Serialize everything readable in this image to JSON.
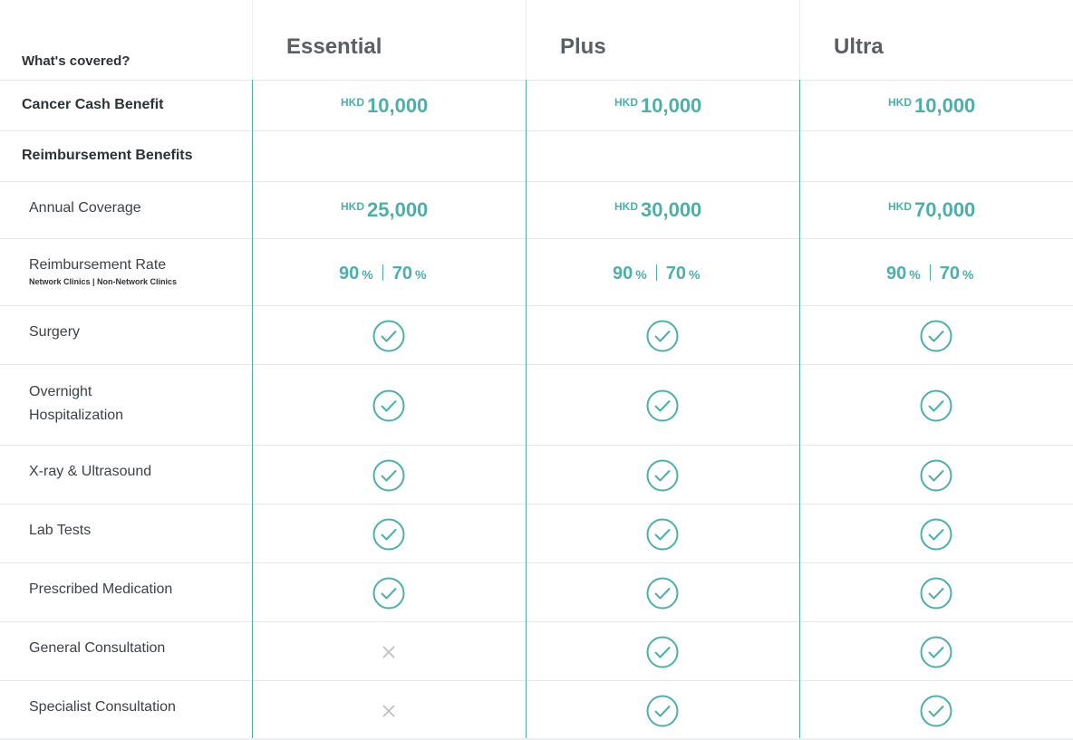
{
  "header": {
    "corner_label": "What's covered?",
    "plans": [
      "Essential",
      "Plus",
      "Ultra"
    ]
  },
  "rows": {
    "cancer_cash": {
      "label": "Cancer Cash Benefit",
      "values": [
        {
          "currency": "HKD",
          "amount": "10,000"
        },
        {
          "currency": "HKD",
          "amount": "10,000"
        },
        {
          "currency": "HKD",
          "amount": "10,000"
        }
      ]
    },
    "reimbursement_section": {
      "label": "Reimbursement Benefits"
    },
    "annual_coverage": {
      "label": "Annual Coverage",
      "values": [
        {
          "currency": "HKD",
          "amount": "25,000"
        },
        {
          "currency": "HKD",
          "amount": "30,000"
        },
        {
          "currency": "HKD",
          "amount": "70,000"
        }
      ]
    },
    "reimbursement_rate": {
      "label": "Reimbursement Rate",
      "sublabel": "Network Clinics | Non-Network Clinics",
      "values": [
        {
          "network": "90",
          "non_network": "70",
          "unit": "%"
        },
        {
          "network": "90",
          "non_network": "70",
          "unit": "%"
        },
        {
          "network": "90",
          "non_network": "70",
          "unit": "%"
        }
      ]
    },
    "features": [
      {
        "label": "Surgery",
        "covered": [
          true,
          true,
          true
        ]
      },
      {
        "label": "Overnight Hospitalization",
        "covered": [
          true,
          true,
          true
        ]
      },
      {
        "label": "X-ray & Ultrasound",
        "covered": [
          true,
          true,
          true
        ]
      },
      {
        "label": "Lab Tests",
        "covered": [
          true,
          true,
          true
        ]
      },
      {
        "label": "Prescribed Medication",
        "covered": [
          true,
          true,
          true
        ]
      },
      {
        "label": "General Consultation",
        "covered": [
          false,
          true,
          true
        ]
      },
      {
        "label": "Specialist Consultation",
        "covered": [
          false,
          true,
          true
        ]
      }
    ]
  },
  "colors": {
    "accent": "#4dafa9",
    "cross": "#b9bdc0",
    "divider": "#e4e7e9"
  },
  "icons": {
    "covered": "check-circle-icon",
    "not_covered": "cross-icon"
  }
}
